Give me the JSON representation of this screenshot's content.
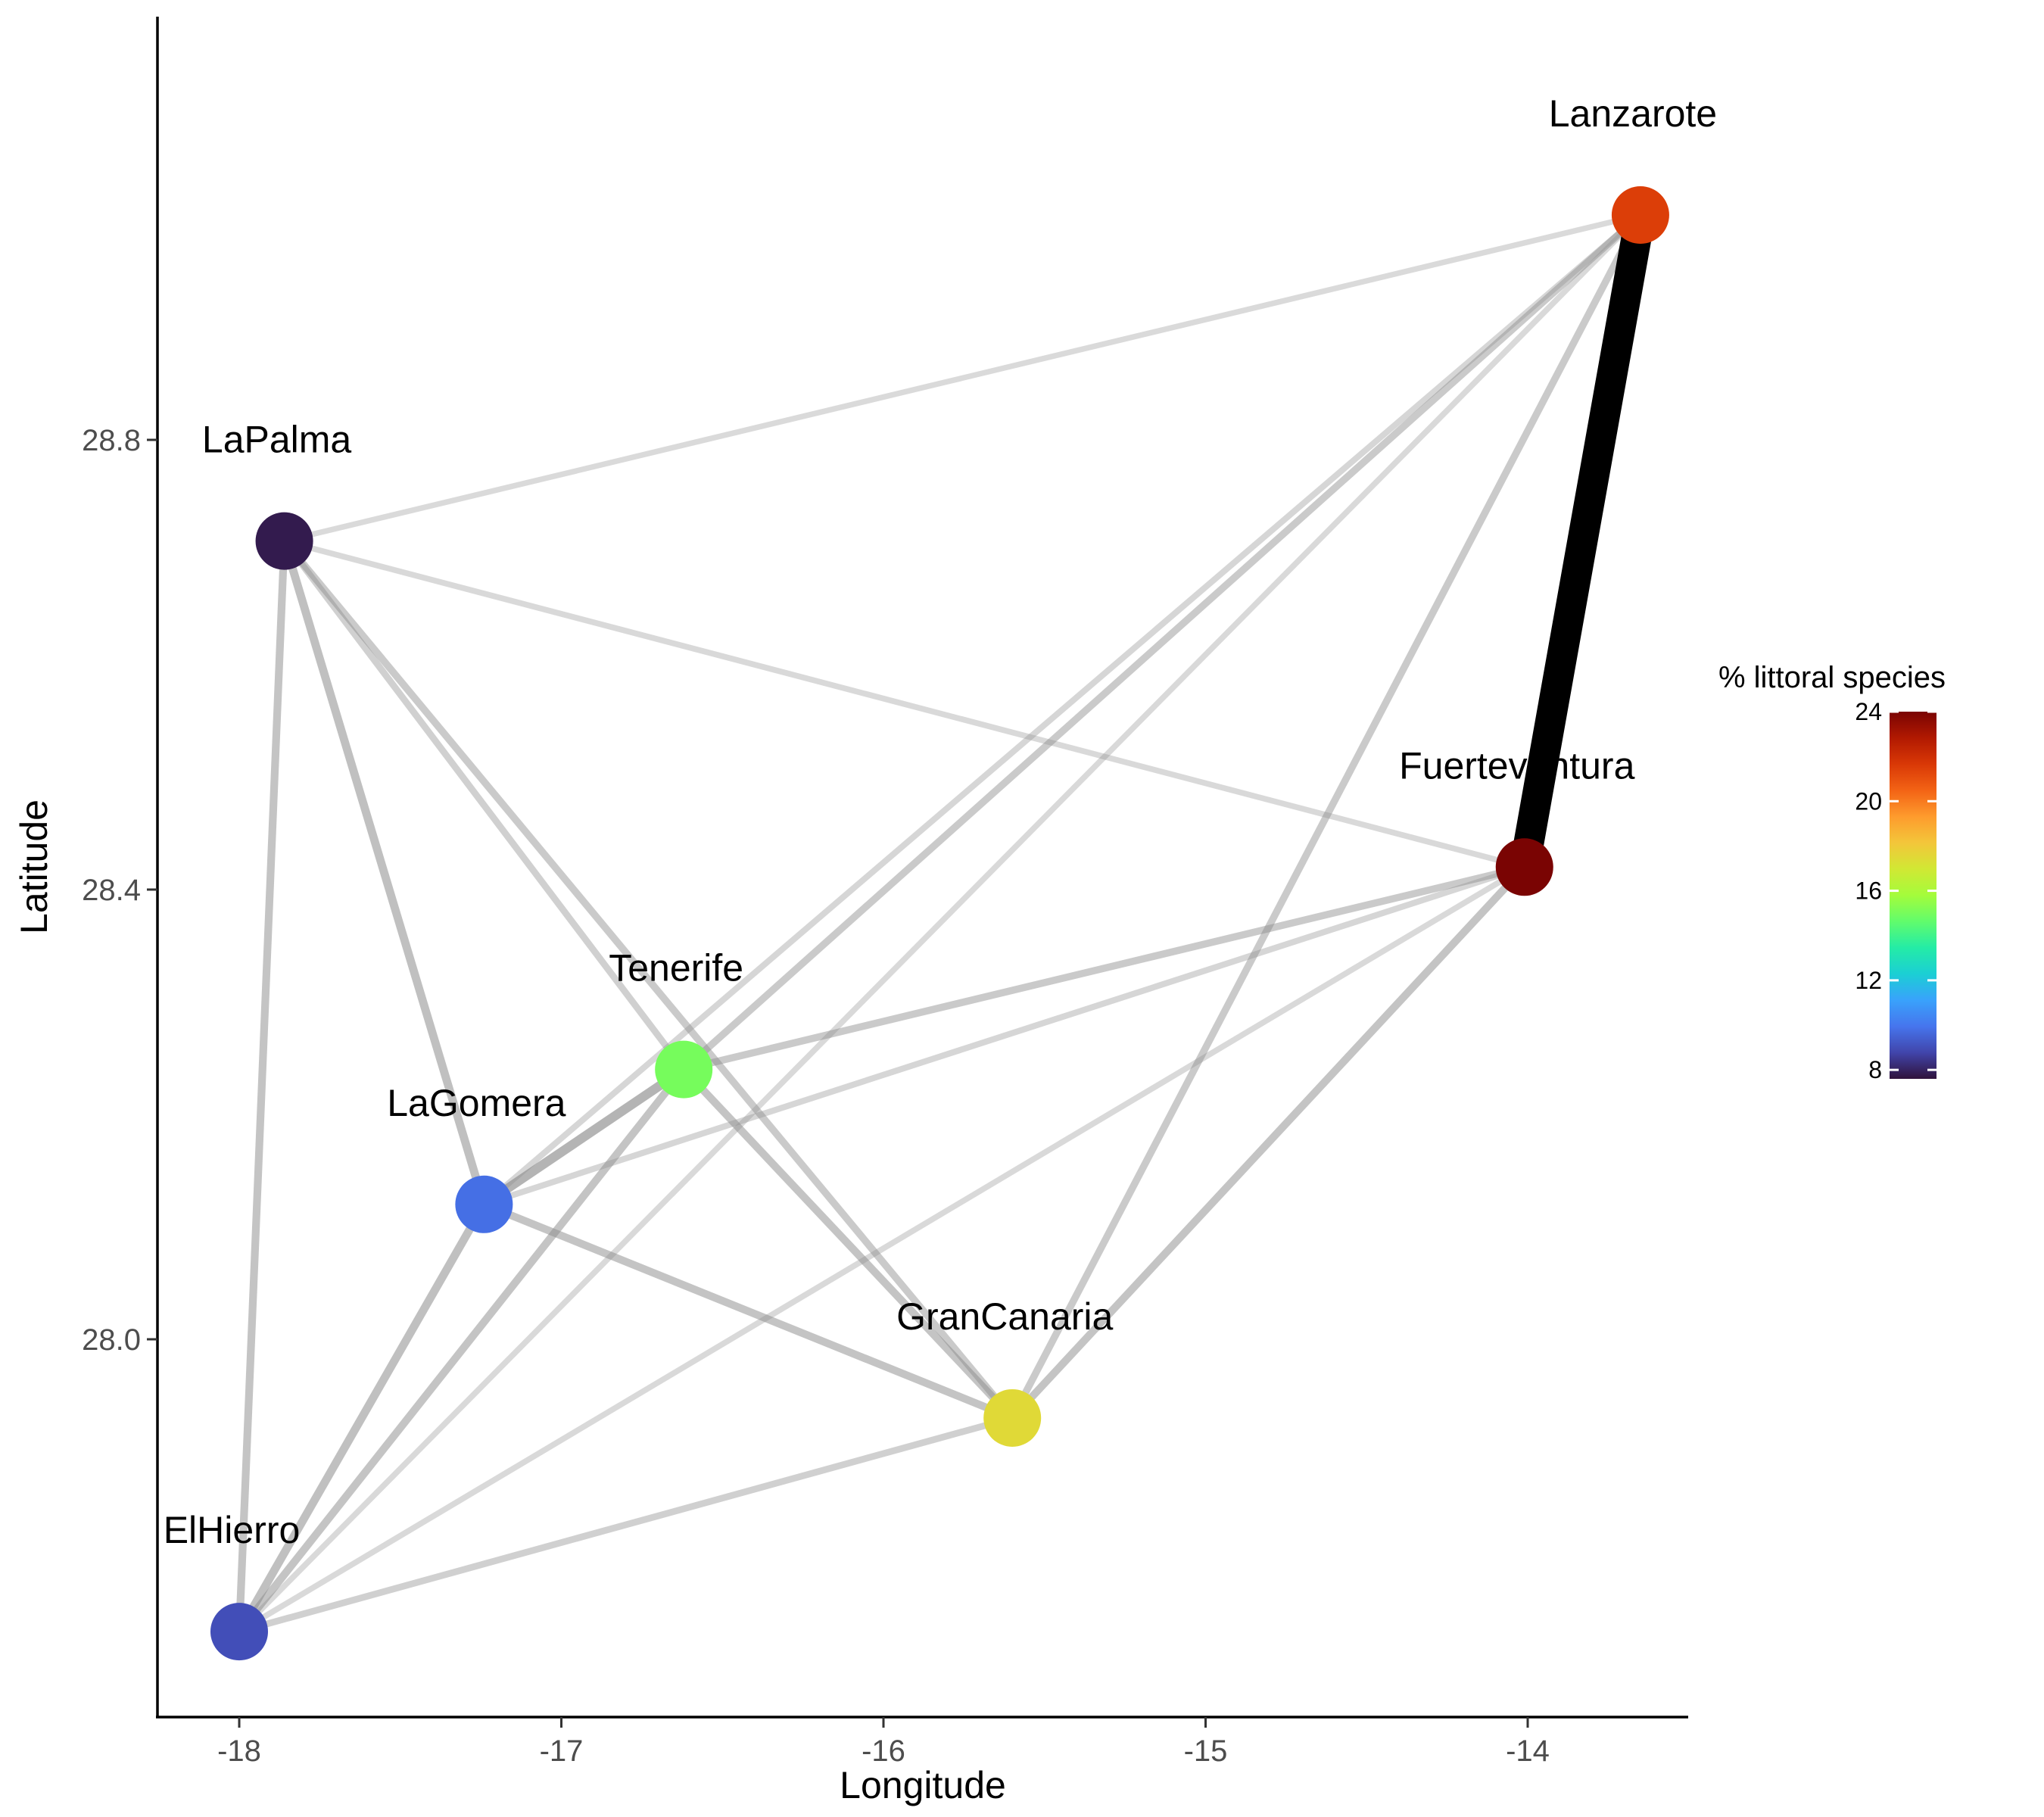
{
  "chart_data": {
    "type": "network",
    "title": "",
    "xlabel": "Longitude",
    "ylabel": "Latitude",
    "xlim": [
      -18.25,
      -13.45
    ],
    "ylim": [
      27.67,
      29.18
    ],
    "x_ticks": [
      -18,
      -17,
      -16,
      -15,
      -14
    ],
    "x_tick_labels": [
      "-18",
      "-17",
      "-16",
      "-15",
      "-14"
    ],
    "y_ticks": [
      28.0,
      28.4,
      28.8
    ],
    "y_tick_labels": [
      "28.0",
      "28.4",
      "28.8"
    ],
    "grid": false,
    "nodes": [
      {
        "name": "Lanzarote",
        "lon": -13.65,
        "lat": 29.0,
        "pct_littoral": 21.5
      },
      {
        "name": "LaPalma",
        "lon": -17.86,
        "lat": 28.71,
        "pct_littoral": 7.8
      },
      {
        "name": "Fuerteventura",
        "lon": -14.01,
        "lat": 28.42,
        "pct_littoral": 24.0
      },
      {
        "name": "Tenerife",
        "lon": -16.62,
        "lat": 28.24,
        "pct_littoral": 15.0
      },
      {
        "name": "LaGomera",
        "lon": -17.24,
        "lat": 28.12,
        "pct_littoral": 9.8
      },
      {
        "name": "GranCanaria",
        "lon": -15.6,
        "lat": 27.93,
        "pct_littoral": 17.5
      },
      {
        "name": "ElHierro",
        "lon": -18.0,
        "lat": 27.74,
        "pct_littoral": 9.0
      }
    ],
    "edges": [
      {
        "source": "Lanzarote",
        "target": "Fuerteventura",
        "weight": 1.0
      },
      {
        "source": "Lanzarote",
        "target": "LaPalma",
        "weight": 0.1
      },
      {
        "source": "Lanzarote",
        "target": "Tenerife",
        "weight": 0.25
      },
      {
        "source": "Lanzarote",
        "target": "LaGomera",
        "weight": 0.15
      },
      {
        "source": "Lanzarote",
        "target": "GranCanaria",
        "weight": 0.25
      },
      {
        "source": "Lanzarote",
        "target": "ElHierro",
        "weight": 0.12
      },
      {
        "source": "LaPalma",
        "target": "Fuerteventura",
        "weight": 0.12
      },
      {
        "source": "LaPalma",
        "target": "Tenerife",
        "weight": 0.2
      },
      {
        "source": "LaPalma",
        "target": "LaGomera",
        "weight": 0.35
      },
      {
        "source": "LaPalma",
        "target": "GranCanaria",
        "weight": 0.25
      },
      {
        "source": "LaPalma",
        "target": "ElHierro",
        "weight": 0.3
      },
      {
        "source": "Fuerteventura",
        "target": "Tenerife",
        "weight": 0.25
      },
      {
        "source": "Fuerteventura",
        "target": "LaGomera",
        "weight": 0.15
      },
      {
        "source": "Fuerteventura",
        "target": "GranCanaria",
        "weight": 0.3
      },
      {
        "source": "Fuerteventura",
        "target": "ElHierro",
        "weight": 0.12
      },
      {
        "source": "Tenerife",
        "target": "LaGomera",
        "weight": 0.45
      },
      {
        "source": "Tenerife",
        "target": "GranCanaria",
        "weight": 0.3
      },
      {
        "source": "Tenerife",
        "target": "ElHierro",
        "weight": 0.3
      },
      {
        "source": "LaGomera",
        "target": "GranCanaria",
        "weight": 0.3
      },
      {
        "source": "LaGomera",
        "target": "ElHierro",
        "weight": 0.35
      },
      {
        "source": "GranCanaria",
        "target": "ElHierro",
        "weight": 0.2
      }
    ],
    "legend": {
      "title": "% littoral species",
      "placement": "right",
      "min": 7.6,
      "max": 24.0,
      "ticks": [
        8,
        12,
        16,
        20,
        24
      ],
      "tick_labels": [
        "8",
        "12",
        "16",
        "20",
        "24"
      ],
      "palette": [
        "#30123b",
        "#4145ab",
        "#4675ed",
        "#39a2fc",
        "#1bcfd4",
        "#24eca6",
        "#61fc6c",
        "#a4fc3b",
        "#d1e834",
        "#f3c63a",
        "#fe9b2d",
        "#f36315",
        "#d93806",
        "#b11901",
        "#7a0403"
      ]
    }
  }
}
